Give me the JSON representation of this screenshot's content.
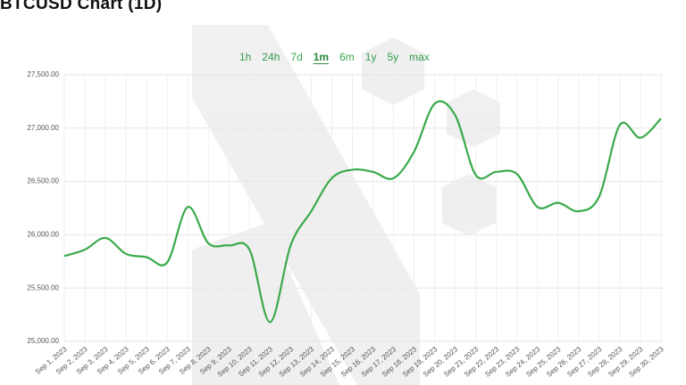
{
  "chart_data": {
    "type": "line",
    "title": "BTCUSD Chart (1D)",
    "categories": [
      "Sep 1, 2023",
      "Sep 2, 2023",
      "Sep 3, 2023",
      "Sep 4, 2023",
      "Sep 5, 2023",
      "Sep 6, 2023",
      "Sep 7, 2023",
      "Sep 8, 2023",
      "Sep 9, 2023",
      "Sep 10, 2023",
      "Sep 11, 2023",
      "Sep 12, 2023",
      "Sep 13, 2023",
      "Sep 14, 2023",
      "Sep 15, 2023",
      "Sep 16, 2023",
      "Sep 17, 2023",
      "Sep 18, 2023",
      "Sep 19, 2023",
      "Sep 20, 2023",
      "Sep 21, 2023",
      "Sep 22, 2023",
      "Sep 23, 2023",
      "Sep 24, 2023",
      "Sep 25, 2023",
      "Sep 26, 2023",
      "Sep 27, 2023",
      "Sep 28, 2023",
      "Sep 29, 2023",
      "Sep 30, 2023"
    ],
    "values": [
      25800,
      25860,
      25970,
      25820,
      25790,
      25740,
      26260,
      25920,
      25900,
      25860,
      25180,
      25900,
      26220,
      26530,
      26610,
      26590,
      26530,
      26780,
      27230,
      27120,
      26560,
      26590,
      26570,
      26260,
      26300,
      26220,
      26360,
      27030,
      26910,
      27090
    ],
    "color": "#3aaa4a",
    "ylim": [
      25000,
      27500
    ],
    "yticks": [
      {
        "value": 25000,
        "label": "25,000.00"
      },
      {
        "value": 25500,
        "label": "25,500.00"
      },
      {
        "value": 26000,
        "label": "26,000.00"
      },
      {
        "value": 26500,
        "label": "26,500.00"
      },
      {
        "value": 27000,
        "label": "27,000.00"
      },
      {
        "value": 27500,
        "label": "27,500.00"
      }
    ],
    "grid": true
  },
  "range_buttons": [
    "1h",
    "24h",
    "7d",
    "1m",
    "6m",
    "1y",
    "5y",
    "max"
  ]
}
